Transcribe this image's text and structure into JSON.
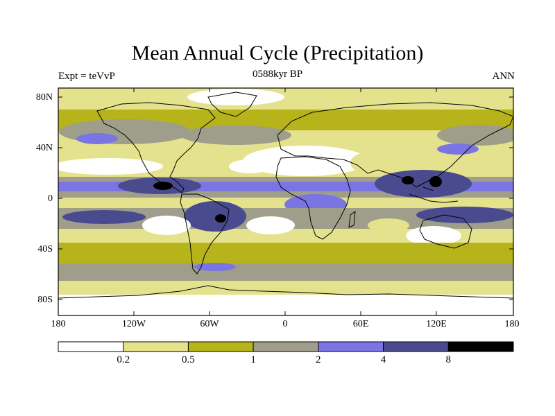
{
  "title": "Mean Annual Cycle (Precipitation)",
  "subtitle": "0588kyr BP",
  "left_label": "Expt = teVvP",
  "right_label": "ANN",
  "y_ticks": [
    "80N",
    "40N",
    "0",
    "40S",
    "80S"
  ],
  "x_ticks": [
    "180",
    "120W",
    "60W",
    "0",
    "60E",
    "120E",
    "180"
  ],
  "colorbar": {
    "labels": [
      "0.2",
      "0.5",
      "1",
      "2",
      "4",
      "8"
    ],
    "colors": [
      "#ffffff",
      "#e4e28c",
      "#b6b31b",
      "#9e9e8a",
      "#7b75e4",
      "#4a4b8e",
      "#000000"
    ]
  },
  "map": {
    "variable": "Precipitation",
    "projection": "cylindrical-equidistant",
    "lon_range": [
      -180,
      180
    ],
    "lat_range": [
      -90,
      90
    ]
  }
}
